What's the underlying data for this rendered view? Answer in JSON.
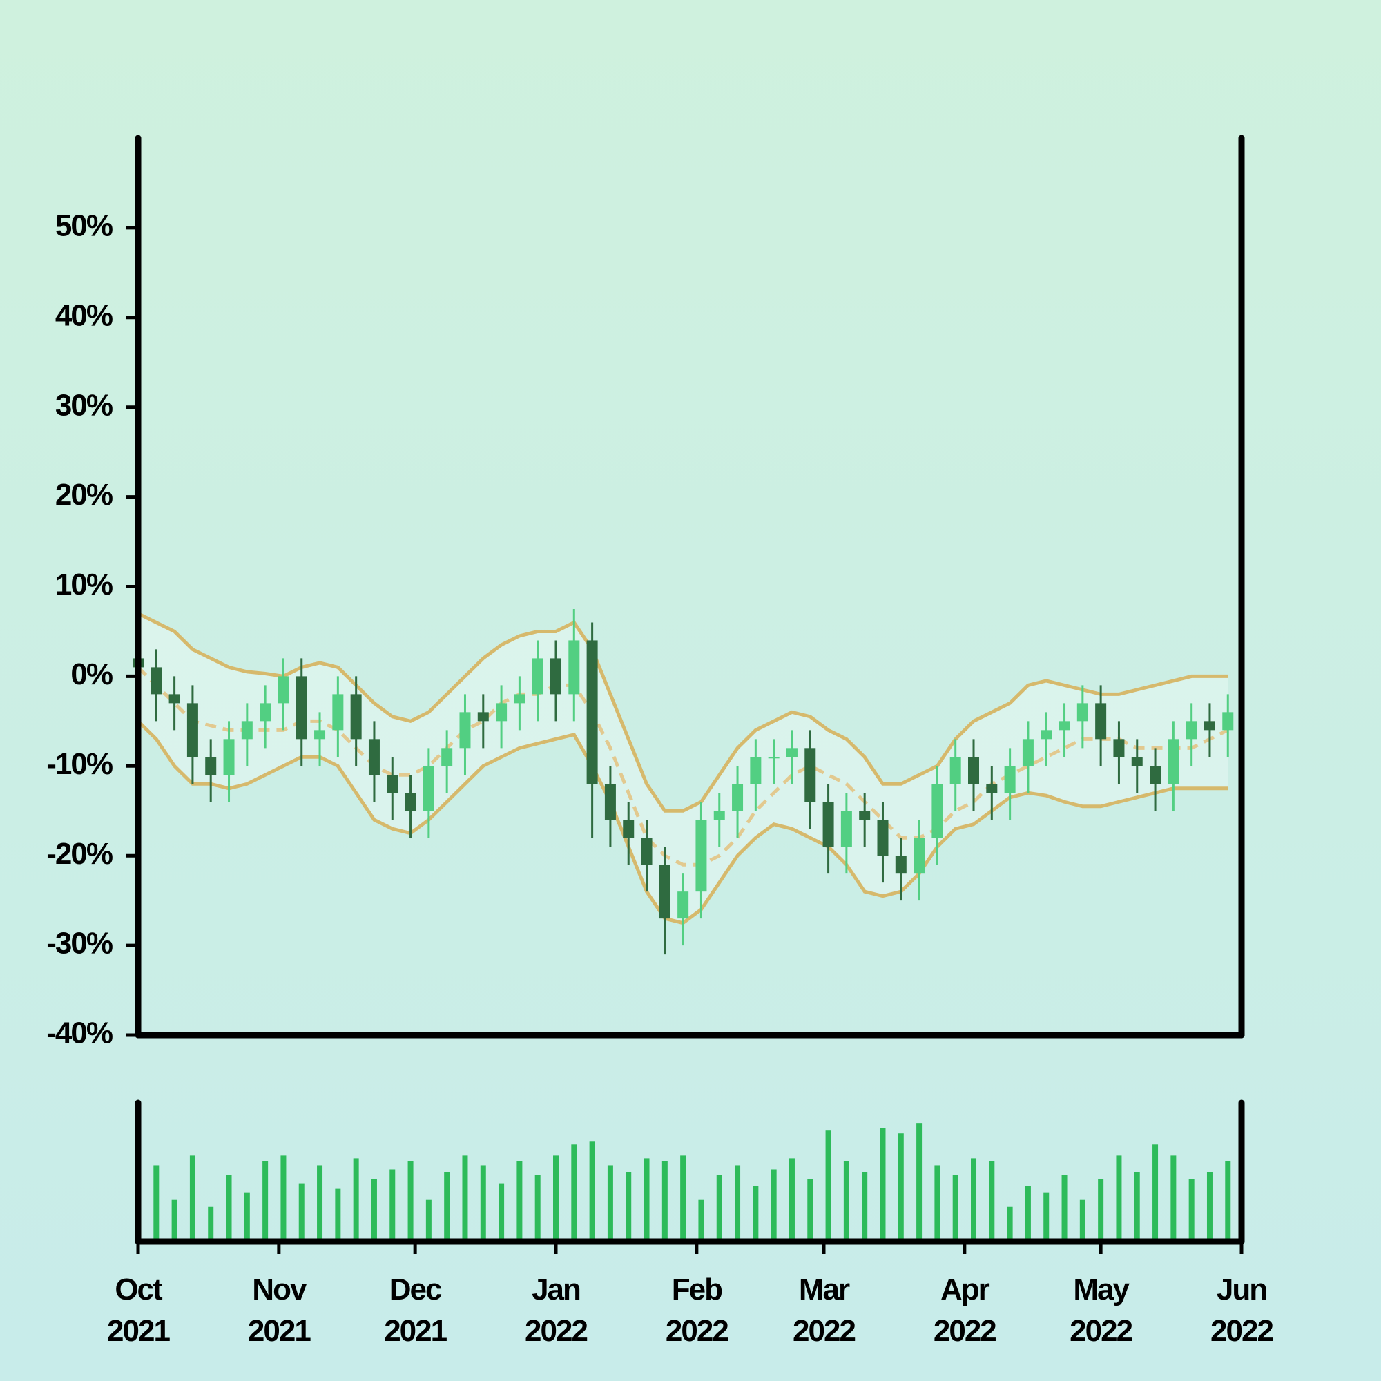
{
  "chart_data": [
    {
      "type": "candlestick",
      "x": [
        "2021-10-01",
        "2021-10-05",
        "2021-10-09",
        "2021-10-13",
        "2021-10-17",
        "2021-10-21",
        "2021-10-25",
        "2021-10-29",
        "2021-11-02",
        "2021-11-06",
        "2021-11-10",
        "2021-11-14",
        "2021-11-18",
        "2021-11-22",
        "2021-11-26",
        "2021-11-30",
        "2021-12-04",
        "2021-12-08",
        "2021-12-12",
        "2021-12-16",
        "2021-12-20",
        "2021-12-24",
        "2021-12-28",
        "2022-01-01",
        "2022-01-05",
        "2022-01-09",
        "2022-01-13",
        "2022-01-17",
        "2022-01-21",
        "2022-01-25",
        "2022-01-29",
        "2022-02-02",
        "2022-02-06",
        "2022-02-10",
        "2022-02-14",
        "2022-02-18",
        "2022-02-22",
        "2022-02-26",
        "2022-03-02",
        "2022-03-06",
        "2022-03-10",
        "2022-03-14",
        "2022-03-18",
        "2022-03-22",
        "2022-03-26",
        "2022-03-30",
        "2022-04-03",
        "2022-04-07",
        "2022-04-11",
        "2022-04-15",
        "2022-04-19",
        "2022-04-23",
        "2022-04-27",
        "2022-05-01",
        "2022-05-05",
        "2022-05-09",
        "2022-05-13",
        "2022-05-17",
        "2022-05-21",
        "2022-05-25",
        "2022-05-29"
      ],
      "open": [
        2,
        1,
        -2,
        -3,
        -9,
        -11,
        -7,
        -5,
        -3,
        0,
        -7,
        -6,
        -2,
        -7,
        -11,
        -13,
        -15,
        -10,
        -8,
        -4,
        -5,
        -3,
        -2,
        2,
        -2,
        4,
        -12,
        -16,
        -18,
        -21,
        -27,
        -24,
        -16,
        -15,
        -12,
        -9,
        -9,
        -8,
        -14,
        -19,
        -15,
        -16,
        -20,
        -22,
        -18,
        -12,
        -9,
        -12,
        -13,
        -10,
        -7,
        -6,
        -5,
        -3,
        -7,
        -9,
        -10,
        -12,
        -7,
        -5,
        -6
      ],
      "high": [
        4,
        3,
        0,
        -1,
        -7,
        -5,
        -3,
        -1,
        2,
        2,
        -4,
        0,
        0,
        -5,
        -9,
        -11,
        -8,
        -6,
        -2,
        -2,
        -1,
        0,
        4,
        4,
        7.5,
        6,
        -10,
        -14,
        -16,
        -19,
        -22,
        -14,
        -13,
        -10,
        -7,
        -7,
        -6,
        -6,
        -12,
        -13,
        -13,
        -14,
        -18,
        -16,
        -10,
        -7,
        -7,
        -10,
        -8,
        -5,
        -4,
        -3,
        -1,
        -1,
        -5,
        -7,
        -8,
        -5,
        -3,
        -3,
        -2
      ],
      "low": [
        -2,
        -5,
        -6,
        -12,
        -14,
        -14,
        -10,
        -8,
        -6,
        -10,
        -10,
        -9,
        -10,
        -14,
        -16,
        -18,
        -18,
        -13,
        -11,
        -8,
        -8,
        -6,
        -5,
        -5,
        -5,
        -18,
        -19,
        -21,
        -24,
        -31,
        -30,
        -27,
        -19,
        -18,
        -15,
        -12,
        -12,
        -17,
        -22,
        -22,
        -19,
        -23,
        -25,
        -25,
        -21,
        -15,
        -15,
        -16,
        -16,
        -13,
        -10,
        -9,
        -8,
        -10,
        -12,
        -13,
        -15,
        -15,
        -10,
        -9,
        -9
      ],
      "close": [
        1,
        -2,
        -3,
        -9,
        -11,
        -7,
        -5,
        -3,
        0,
        -7,
        -6,
        -2,
        -7,
        -11,
        -13,
        -15,
        -10,
        -8,
        -4,
        -5,
        -3,
        -2,
        2,
        -2,
        4,
        -12,
        -16,
        -18,
        -21,
        -27,
        -24,
        -16,
        -15,
        -12,
        -9,
        -9,
        -8,
        -14,
        -19,
        -15,
        -16,
        -20,
        -22,
        -18,
        -12,
        -9,
        -12,
        -13,
        -10,
        -7,
        -6,
        -5,
        -3,
        -7,
        -9,
        -10,
        -12,
        -7,
        -5,
        -6,
        -4
      ],
      "up_color": "#52cf82",
      "down_color": "#2f6b40",
      "bands": {
        "color": "#d6b96c",
        "middle_color": "#e2c98f",
        "upper": [
          7,
          6,
          5,
          3,
          2,
          1,
          0.5,
          0.3,
          0,
          1,
          1.5,
          1,
          -1,
          -3,
          -4.5,
          -5,
          -4,
          -2,
          0,
          2,
          3.5,
          4.5,
          5,
          5,
          6,
          3,
          -2,
          -7,
          -12,
          -15,
          -15,
          -14,
          -11,
          -8,
          -6,
          -5,
          -4,
          -4.5,
          -6,
          -7,
          -9,
          -12,
          -12,
          -11,
          -10,
          -7,
          -5,
          -4,
          -3,
          -1,
          -0.5,
          -1,
          -1.5,
          -2,
          -2,
          -1.5,
          -1,
          -0.5,
          0,
          0,
          0
        ],
        "middle": [
          1,
          -1,
          -3,
          -5,
          -5.5,
          -6,
          -6,
          -6,
          -6,
          -5,
          -5,
          -6,
          -8,
          -10,
          -11,
          -11,
          -10,
          -8,
          -6,
          -5,
          -3,
          -2,
          -2,
          -1,
          -1,
          -4,
          -8,
          -13,
          -18,
          -20,
          -21,
          -21,
          -20,
          -18,
          -15,
          -13,
          -11,
          -10,
          -11,
          -12,
          -14,
          -16,
          -18,
          -18,
          -17,
          -15,
          -14,
          -12,
          -11,
          -10,
          -9,
          -8,
          -7,
          -7,
          -7,
          -8,
          -8,
          -8,
          -8,
          -7,
          -6
        ],
        "lower": [
          -5,
          -7,
          -10,
          -12,
          -12,
          -12.5,
          -12,
          -11,
          -10,
          -9,
          -9,
          -10,
          -13,
          -16,
          -17,
          -17.5,
          -16,
          -14,
          -12,
          -10,
          -9,
          -8,
          -7.5,
          -7,
          -6.5,
          -10,
          -14,
          -19,
          -24,
          -27,
          -27.5,
          -26,
          -23,
          -20,
          -18,
          -16.5,
          -17,
          -18,
          -19,
          -21,
          -24,
          -24.5,
          -24,
          -22,
          -19,
          -17,
          -16.5,
          -15,
          -13.5,
          -13,
          -13.3,
          -14,
          -14.5,
          -14.5,
          -14,
          -13.5,
          -13,
          -12.5,
          -12.5,
          -12.5,
          -12.5
        ]
      },
      "xlim": [
        "2021-10",
        "2022-06"
      ],
      "ylim": [
        -40,
        60
      ],
      "yticks": [
        {
          "value": -40,
          "label": "-40%"
        },
        {
          "value": -30,
          "label": "-30%"
        },
        {
          "value": -20,
          "label": "-20%"
        },
        {
          "value": -10,
          "label": "-10%"
        },
        {
          "value": 0,
          "label": "0%"
        },
        {
          "value": 10,
          "label": "10%"
        },
        {
          "value": 20,
          "label": "20%"
        },
        {
          "value": 30,
          "label": "30%"
        },
        {
          "value": 40,
          "label": "40%"
        },
        {
          "value": 50,
          "label": "50%"
        }
      ]
    },
    {
      "type": "bar",
      "values": [
        40,
        55,
        30,
        62,
        25,
        48,
        35,
        58,
        62,
        42,
        55,
        38,
        60,
        45,
        52,
        58,
        30,
        50,
        62,
        55,
        42,
        58,
        48,
        62,
        70,
        72,
        55,
        50,
        60,
        58,
        62,
        30,
        48,
        55,
        40,
        52,
        60,
        45,
        80,
        58,
        50,
        82,
        78,
        85,
        55,
        48,
        60,
        58,
        25,
        40,
        35,
        48,
        30,
        45,
        62,
        50,
        70,
        62,
        45,
        50,
        58
      ],
      "color": "#2dbb5a",
      "ylim": [
        0,
        100
      ],
      "xlim": [
        "2021-10",
        "2022-06"
      ],
      "xticks": [
        {
          "value": "2021-10",
          "label": "Oct\n2021"
        },
        {
          "value": "2021-11",
          "label": "Nov\n2021"
        },
        {
          "value": "2021-12",
          "label": "Dec\n2021"
        },
        {
          "value": "2022-01",
          "label": "Jan\n2022"
        },
        {
          "value": "2022-02",
          "label": "Feb\n2022"
        },
        {
          "value": "2022-03",
          "label": "Mar\n2022"
        },
        {
          "value": "2022-04",
          "label": "Apr\n2022"
        },
        {
          "value": "2022-05",
          "label": "May\n2022"
        },
        {
          "value": "2022-06",
          "label": "Jun\n2022"
        }
      ]
    }
  ]
}
